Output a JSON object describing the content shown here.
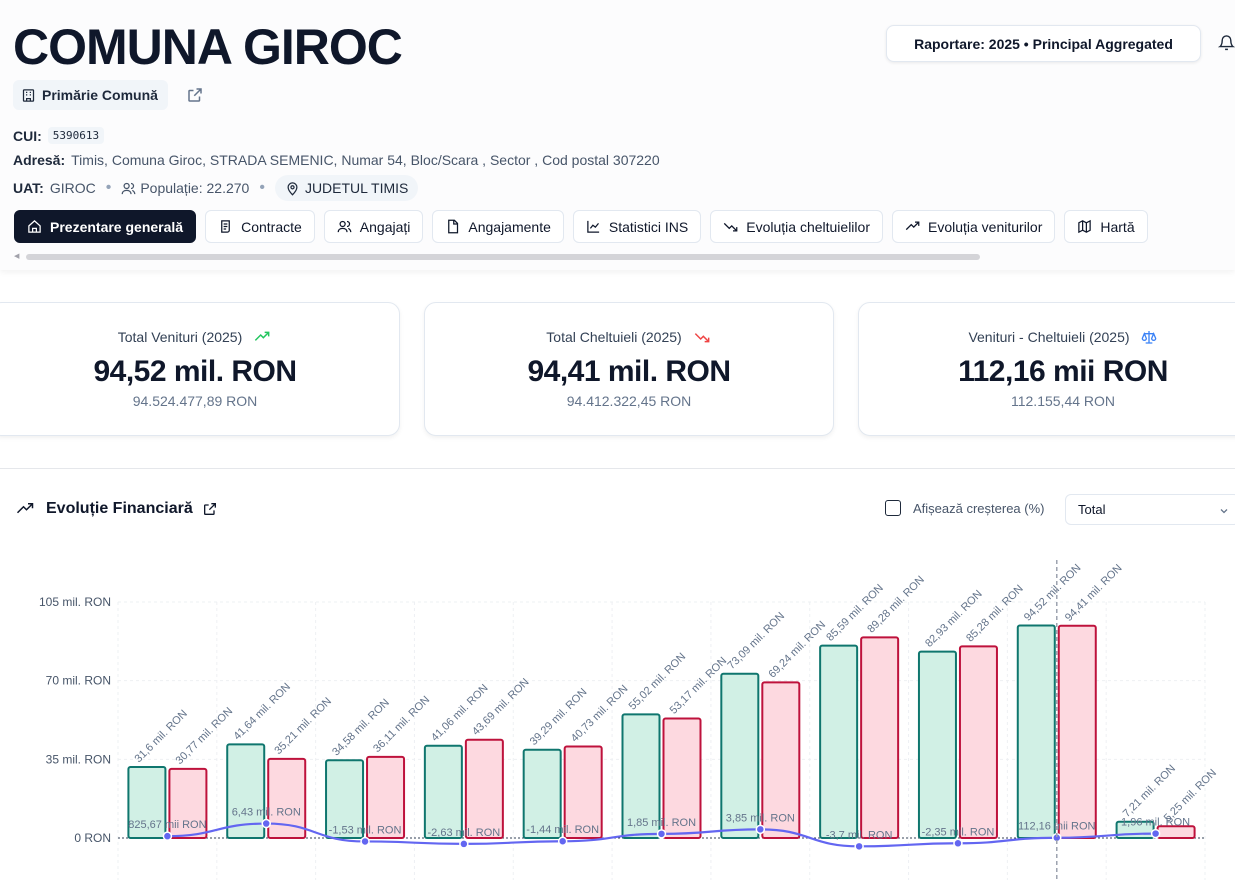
{
  "header": {
    "title": "COMUNA GIROC",
    "badge": "Primărie Comună",
    "cui_label": "CUI:",
    "cui_value": "5390613",
    "address_label": "Adresă:",
    "address_value": "Timis, Comuna Giroc, STRADA SEMENIC, Numar 54, Bloc/Scara , Sector , Cod postal 307220",
    "uat_label": "UAT:",
    "uat_value": "GIROC",
    "population": "Populație: 22.270",
    "county": "JUDETUL TIMIS",
    "report_button": "Raportare: 2025 • Principal Aggregated"
  },
  "tabs": [
    {
      "label": "Prezentare generală",
      "icon": "home-icon",
      "active": true
    },
    {
      "label": "Contracte",
      "icon": "document-scroll-icon",
      "active": false
    },
    {
      "label": "Angajați",
      "icon": "users-icon",
      "active": false
    },
    {
      "label": "Angajamente",
      "icon": "file-icon",
      "active": false
    },
    {
      "label": "Statistici INS",
      "icon": "line-chart-icon",
      "active": false
    },
    {
      "label": "Evoluția cheltuielilor",
      "icon": "trend-down-icon",
      "active": false
    },
    {
      "label": "Evoluția veniturilor",
      "icon": "trend-up-icon",
      "active": false
    },
    {
      "label": "Hartă",
      "icon": "map-icon",
      "active": false
    }
  ],
  "cards": [
    {
      "label": "Total Venituri (2025)",
      "value": "94,52 mil. RON",
      "sub": "94.524.477,89 RON",
      "icon": "trend-up-icon",
      "icon_color": "#22c55e"
    },
    {
      "label": "Total Cheltuieli (2025)",
      "value": "94,41 mil. RON",
      "sub": "94.412.322,45 RON",
      "icon": "trend-down-icon",
      "icon_color": "#ef4444"
    },
    {
      "label": "Venituri - Cheltuieli (2025)",
      "value": "112,16 mii RON",
      "sub": "112.155,44 RON",
      "icon": "scale-icon",
      "icon_color": "#3b82f6"
    }
  ],
  "section": {
    "title": "Evoluție Financiară",
    "growth_label": "Afișează creșterea (%)",
    "select_value": "Total"
  },
  "chart_data": {
    "type": "bar",
    "y_ticks": [
      "105 mil. RON",
      "70 mil. RON",
      "35 mil. RON",
      "0 RON"
    ],
    "ylim": [
      0,
      105
    ],
    "grid": true,
    "series": [
      {
        "values": [
          31.6,
          41.64,
          34.58,
          41.06,
          39.29,
          55.02,
          73.09,
          85.59,
          82.93,
          94.52,
          7.21
        ],
        "labels": [
          "31,6 mil. RON",
          "41,64 mil. RON",
          "34,58 mil. RON",
          "41,06 mil. RON",
          "39,29 mil. RON",
          "55,02 mil. RON",
          "73,09 mil. RON",
          "85,59 mil. RON",
          "82,93 mil. RON",
          "94,52 mil. RON",
          "7,21 mil. RON"
        ],
        "color": "#0f766e",
        "fill": "#d1f0e5"
      },
      {
        "values": [
          30.77,
          35.21,
          36.11,
          43.69,
          40.73,
          53.17,
          69.24,
          89.28,
          85.28,
          94.41,
          5.25
        ],
        "labels": [
          "30,77 mil. RON",
          "35,21 mil. RON",
          "36,11 mil. RON",
          "43,69 mil. RON",
          "40,73 mil. RON",
          "53,17 mil. RON",
          "69,24 mil. RON",
          "89,28 mil. RON",
          "85,28 mil. RON",
          "94,41 mil. RON",
          "5,25 mil. RON"
        ],
        "color": "#be123c",
        "fill": "#fdd9e0"
      },
      {
        "values": [
          0.82567,
          6.43,
          -1.53,
          -2.63,
          -1.44,
          1.85,
          3.85,
          -3.7,
          -2.35,
          0.11216,
          1.96
        ],
        "labels": [
          "825,67 mii RON",
          "6,43 mil. RON",
          "-1,53 mil. RON",
          "-2,63 mil. RON",
          "-1,44 mil. RON",
          "1,85 mil. RON",
          "3,85 mil. RON",
          "-3,7 mil. RON",
          "-2,35 mil. RON",
          "112,16 mii RON",
          "1,96 mil. RON"
        ],
        "color": "#6366f1",
        "type": "line"
      }
    ]
  }
}
